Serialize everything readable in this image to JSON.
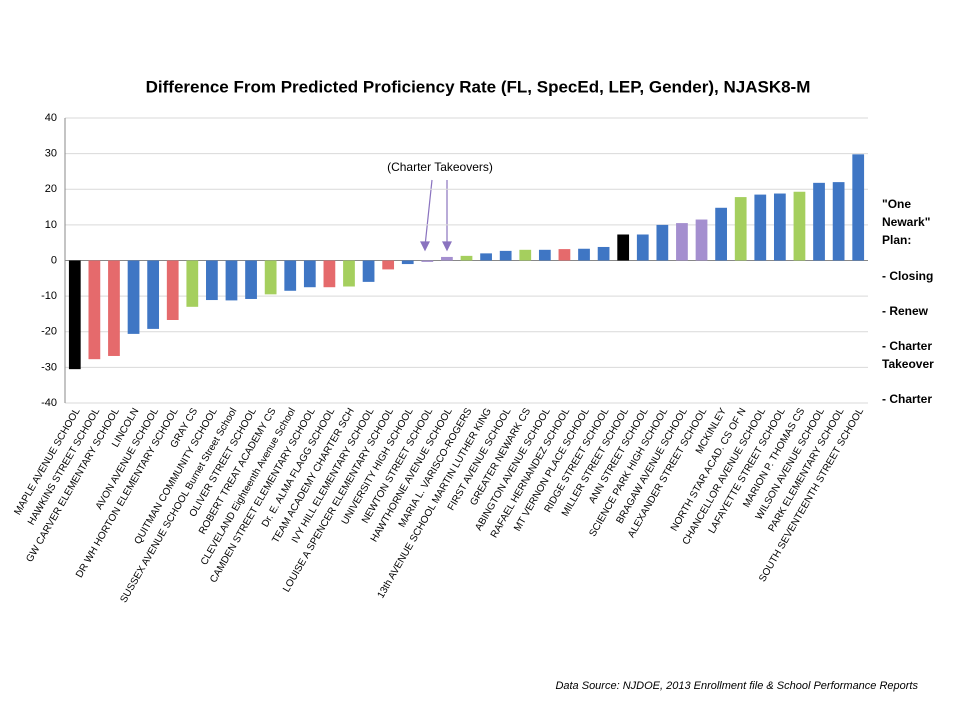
{
  "chart_data": {
    "type": "bar",
    "title": "Difference From Predicted Proficiency Rate (FL, SpecEd, LEP, Gender), NJASK8-M",
    "categories": [
      "MAPLE AVENUE SCHOOL",
      "HAWKINS STREET SCHOOL",
      "GW CARVER ELEMENTARY SCHOOL",
      "LINCOLN",
      "AVON AVENUE SCHOOL",
      "DR WH HORTON ELEMENTARY SCHOOL",
      "GRAY CS",
      "QUITMAN COMMUNITY SCHOOL",
      "SUSSEX AVENUE SCHOOL Burnet Street  School",
      "OLIVER STREET SCHOOL",
      "ROBERT TREAT ACADEMY CS",
      "CLEVELAND Eighteenth Avenue School",
      "CAMDEN STREET ELEMENTARY SCHOOL",
      "Dr. E. ALMA FLAGG SCHOOL",
      "TEAM ACADEMY CHARTER SCH",
      "IVY HILL ELEMENTARY SCHOOL",
      "LOUISE A SPENCER ELEMENTARY SCHOOL",
      "UNIVERSITY HIGH SCHOOL",
      "NEWTON STREET SCHOOL",
      "HAWTHORNE AVENUE SCHOOL",
      "MARIA L. VARISCO-ROGERS",
      "13th AVENUE SCHOOL MARTIN LUTHER KING",
      "FIRST AVENUE SCHOOL",
      "GREATER NEWARK CS",
      "ABINGTON AVENUE SCHOOL",
      "RAFAEL HERNANDEZ SCHOOL",
      "MT VERNON PLACE SCHOOL",
      "RIDGE STREET SCHOOL",
      "MILLER STREET SCHOOL",
      "ANN STREET SCHOOL",
      "SCIENCE PARK HIGH SCHOOL",
      "BRAGAW AVENUE SCHOOL",
      "ALEXANDER STREET SCHOOL",
      "MCKINLEY",
      "NORTH STAR ACAD. CS OF N",
      "CHANCELLOR AVENUE SCHOOL",
      "LAFAYETTE STREET SCHOOL",
      "MARION P. THOMAS CS",
      "WILSON AVENUE SCHOOL",
      "PARK ELEMENTARY SCHOOL",
      "SOUTH SEVENTEENTH STREET SCHOOL"
    ],
    "values": [
      -30.5,
      -27.7,
      -26.8,
      -20.6,
      -19.2,
      -16.7,
      -13,
      -11.1,
      -11.2,
      -10.8,
      -9.5,
      -8.5,
      -7.5,
      -7.5,
      -7.3,
      -6,
      -2.5,
      -1,
      -0.4,
      1,
      1.3,
      2,
      2.7,
      3,
      3,
      3.2,
      3.3,
      3.8,
      7.3,
      7.3,
      10,
      10.5,
      11.5,
      14.8,
      17.8,
      18.5,
      18.8,
      19.3,
      21.8,
      22,
      29.8
    ],
    "colors": [
      "#000000",
      "#e56a6c",
      "#e56a6c",
      "#3f76c4",
      "#3f76c4",
      "#e56a6c",
      "#a5cf5e",
      "#3f76c4",
      "#3f76c4",
      "#3f76c4",
      "#a5cf5e",
      "#3f76c4",
      "#3f76c4",
      "#e56a6c",
      "#a5cf5e",
      "#3f76c4",
      "#e56a6c",
      "#3f76c4",
      "#a48fcf",
      "#a48fcf",
      "#a5cf5e",
      "#3f76c4",
      "#3f76c4",
      "#a5cf5e",
      "#3f76c4",
      "#e56a6c",
      "#3f76c4",
      "#3f76c4",
      "#000000",
      "#3f76c4",
      "#3f76c4",
      "#a48fcf",
      "#a48fcf",
      "#3f76c4",
      "#a5cf5e",
      "#3f76c4",
      "#3f76c4",
      "#a5cf5e",
      "#3f76c4",
      "#3f76c4",
      "#3f76c4"
    ],
    "ylim": [
      -40,
      40
    ],
    "yticks": [
      -40,
      -30,
      -20,
      -10,
      0,
      10,
      20,
      30,
      40
    ],
    "grid": true,
    "annotation": "(Charter Takeovers)",
    "legend": [
      {
        "label": "\"One",
        "color": "#000000"
      },
      {
        "label": "Newark\"",
        "color": "#000000"
      },
      {
        "label": "Plan:",
        "color": "#000000"
      },
      {
        "label": "- Closing",
        "color": "#000000"
      },
      {
        "label": "- Renew",
        "color": "#e0393c"
      },
      {
        "label": "- Charter",
        "color": "#8a73bf"
      },
      {
        "label": "Takeover",
        "color": "#8a73bf"
      },
      {
        "label": "- Charter",
        "color": "#93c04e"
      }
    ],
    "source": "Data Source:  NJDOE, 2013 Enrollment file & School Performance Reports"
  }
}
